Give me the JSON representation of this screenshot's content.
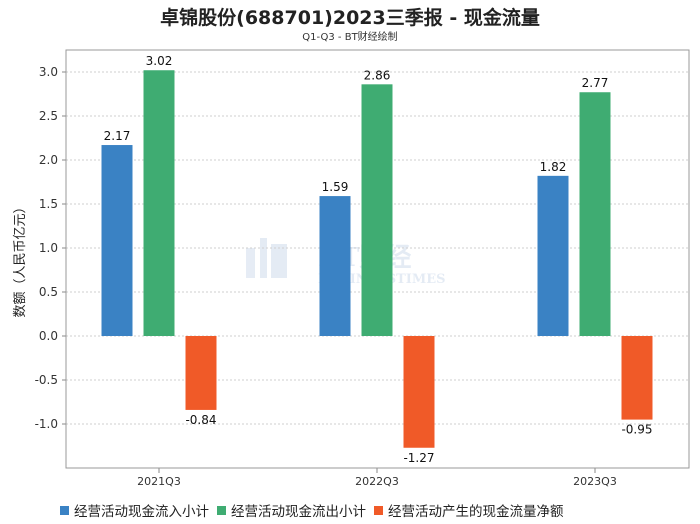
{
  "chart_data": {
    "type": "bar",
    "title": "卓锦股份(688701)2023三季报 - 现金流量",
    "subtitle": "Q1-Q3 - BT财经绘制",
    "ylabel": "数额（人民币亿元）",
    "xlabel": "",
    "categories": [
      "2021Q3",
      "2022Q3",
      "2023Q3"
    ],
    "ylim": [
      -1.4,
      3.2
    ],
    "yticks": [
      3.0,
      2.5,
      2.0,
      1.5,
      1.0,
      0.5,
      0.0,
      -0.5,
      -1.0
    ],
    "ytick_labels": [
      "3.0",
      "2.5",
      "2.0",
      "1.5",
      "1.0",
      "0.5",
      "0.0",
      "-0.5",
      "-1.0"
    ],
    "grid": true,
    "legend_position": "bottom",
    "series": [
      {
        "name": "经营活动现金流入小计",
        "color": "#3a82c4",
        "values": [
          2.17,
          1.59,
          1.82
        ],
        "labels": [
          "2.17",
          "1.59",
          "1.82"
        ]
      },
      {
        "name": "经营活动现金流出小计",
        "color": "#3fac72",
        "values": [
          3.02,
          2.86,
          2.77
        ],
        "labels": [
          "3.02",
          "2.86",
          "2.77"
        ]
      },
      {
        "name": "经营活动产生的现金流量净额",
        "color": "#f05a28",
        "values": [
          -0.84,
          -1.27,
          -0.95
        ],
        "labels": [
          "-0.84",
          "-1.27",
          "-0.95"
        ]
      }
    ],
    "watermark": {
      "main": "BT财经",
      "sub": "BUSINESSTIMES"
    }
  }
}
